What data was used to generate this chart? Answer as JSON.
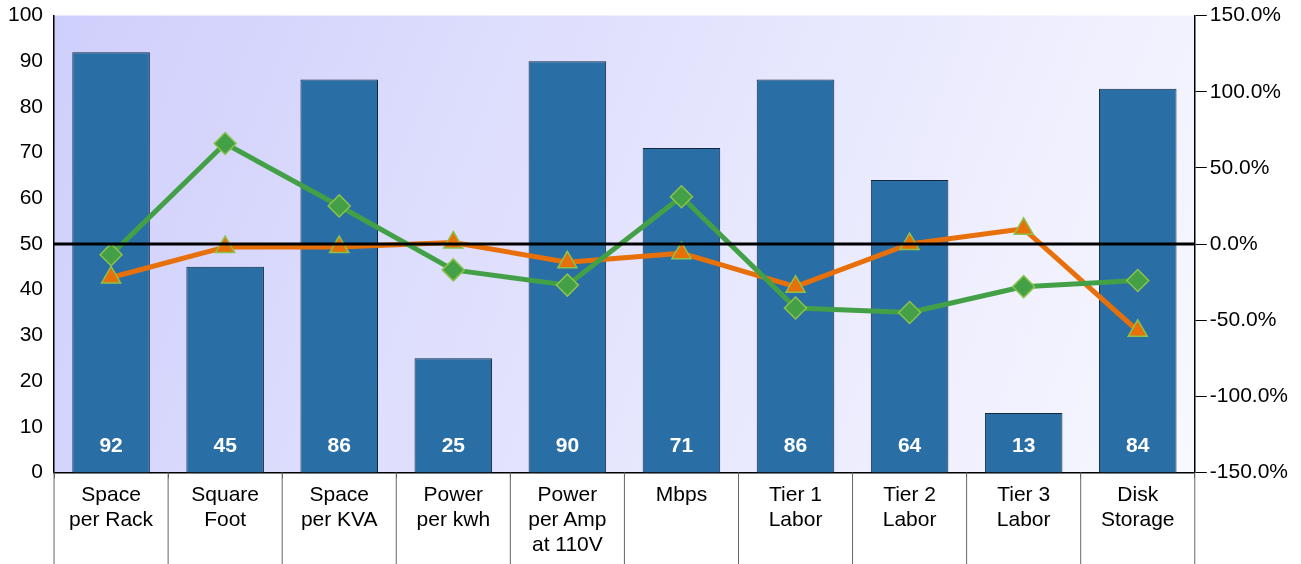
{
  "chart_data": {
    "type": "bar",
    "categories": [
      "Space per Rack",
      "Square Foot",
      "Space per KVA",
      "Power per kwh",
      "Power per Amp at 110V",
      "Mbps",
      "Tier 1 Labor",
      "Tier 2 Labor",
      "Tier 3 Labor",
      "Disk Storage"
    ],
    "series": [
      {
        "type": "bar",
        "color": "#2a6ea6",
        "values": [
          92,
          45,
          86,
          25,
          90,
          71,
          86,
          64,
          13,
          84
        ],
        "value_labels": [
          "92",
          "45",
          "86",
          "25",
          "90",
          "71",
          "86",
          "64",
          "13",
          "84"
        ]
      },
      {
        "type": "line",
        "axis": "y2",
        "color": "#43a047",
        "marker": "diamond",
        "values": [
          -7,
          66,
          25,
          -17,
          -27,
          31,
          -42,
          -45,
          -28,
          -24
        ]
      },
      {
        "type": "line",
        "axis": "y2",
        "color": "#e8700a",
        "marker": "triangle",
        "values": [
          -22,
          -2,
          -2,
          1,
          -12,
          -6,
          -28,
          0,
          10,
          -57
        ]
      }
    ],
    "ylim": [
      0,
      100
    ],
    "yticks": [
      0,
      10,
      20,
      30,
      40,
      50,
      60,
      70,
      80,
      90,
      100
    ],
    "y2lim": [
      -150,
      150
    ],
    "y2ticks": [
      {
        "value": -150,
        "label": "-150.0%"
      },
      {
        "value": -100,
        "label": "-100.0%"
      },
      {
        "value": -50,
        "label": "-50.0%"
      },
      {
        "value": 0,
        "label": "0.0%"
      },
      {
        "value": 50,
        "label": "50.0%"
      },
      {
        "value": 100,
        "label": "100.0%"
      },
      {
        "value": 150,
        "label": "150.0%"
      }
    ],
    "ref_lines": [
      {
        "axis": "y2",
        "value": 0,
        "color": "#000000"
      }
    ],
    "grid": false,
    "legend": false
  }
}
